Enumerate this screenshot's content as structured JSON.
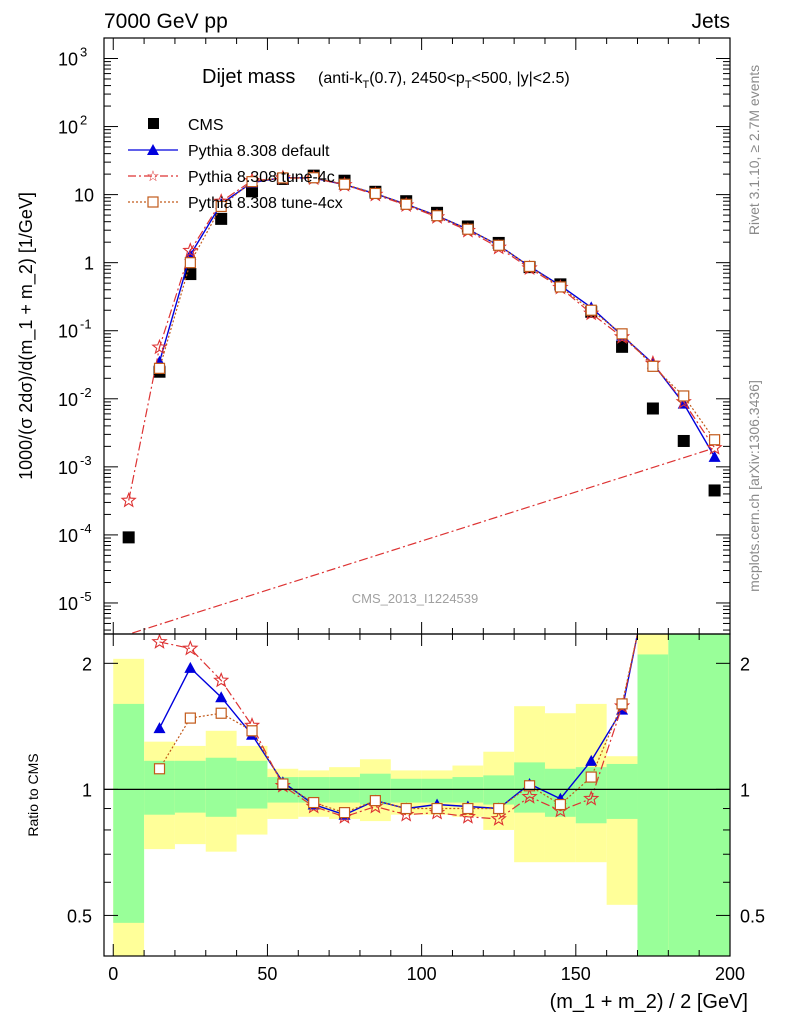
{
  "header": {
    "left": "7000 GeV pp",
    "right": "Jets"
  },
  "side_text": {
    "rivet": "Rivet 3.1.10, ≥ 2.7M events",
    "mcplots": "mcplots.cern.ch [arXiv:1306.3436]"
  },
  "colors": {
    "cms": "#000000",
    "default": "#0000dd",
    "tune4c": "#dd3333",
    "tune4cx": "#c25a1a",
    "band_inner": "#99ff99",
    "band_outer": "#ffff99"
  },
  "chart_data": [
    {
      "type": "scatter",
      "title": "Dijet mass",
      "title_detail": "(anti-k_T(0.7), 2450<p_T<500, |y|<2.5)",
      "watermark": "CMS_2013_I1224539",
      "xlabel": "(m_1 + m_2) / 2 [GeV]",
      "ylabel": "1000/(σ 2dσ)/d(m_1 + m_2) [1/GeV]",
      "yscale": "log",
      "xlim": [
        -3,
        200
      ],
      "ylim": [
        3.5e-06,
        2000
      ],
      "yticks": [
        {
          "v": 1e-05,
          "m": "10",
          "e": "-5"
        },
        {
          "v": 0.0001,
          "m": "10",
          "e": "-4"
        },
        {
          "v": 0.001,
          "m": "10",
          "e": "-3"
        },
        {
          "v": 0.01,
          "m": "10",
          "e": "-2"
        },
        {
          "v": 0.1,
          "m": "10",
          "e": "-1"
        },
        {
          "v": 1,
          "m": "1",
          "e": ""
        },
        {
          "v": 10,
          "m": "10",
          "e": ""
        },
        {
          "v": 100,
          "m": "10",
          "e": "2"
        },
        {
          "v": 1000,
          "m": "10",
          "e": "3"
        }
      ],
      "legend_position": "top-left",
      "series": [
        {
          "name": "CMS",
          "marker": "square",
          "x": [
            5,
            15,
            25,
            35,
            45,
            55,
            65,
            75,
            85,
            95,
            105,
            115,
            125,
            135,
            145,
            155,
            165,
            175,
            185,
            195
          ],
          "y": [
            9.2e-05,
            0.025,
            0.68,
            4.4,
            11.2,
            17.0,
            19.0,
            16.0,
            11.0,
            8.0,
            5.4,
            3.4,
            1.95,
            0.86,
            0.48,
            0.19,
            0.058,
            0.0072,
            0.0024,
            0.00045
          ]
        },
        {
          "name": "Pythia 8.308 default",
          "marker": "triangle",
          "line": "solid",
          "x": [
            15,
            25,
            35,
            45,
            55,
            65,
            75,
            85,
            95,
            105,
            115,
            125,
            135,
            145,
            155,
            165,
            175,
            185,
            195
          ],
          "y": [
            0.035,
            1.3,
            7.3,
            15.0,
            17.8,
            17.5,
            14.0,
            10.3,
            7.2,
            4.9,
            3.1,
            1.8,
            0.88,
            0.46,
            0.22,
            0.085,
            0.033,
            0.0085,
            0.0014
          ]
        },
        {
          "name": "Pythia 8.308 tune-4c",
          "marker": "star",
          "line": "dashdot",
          "x": [
            5,
            15,
            25,
            35,
            45,
            55,
            65,
            75,
            85,
            95,
            105,
            115,
            125,
            135,
            145,
            155,
            165,
            175,
            185,
            195
          ],
          "y": [
            0.00032,
            0.057,
            1.5,
            7.9,
            16.0,
            17.5,
            17.4,
            13.9,
            10.0,
            7.0,
            4.7,
            2.95,
            1.67,
            0.83,
            0.43,
            0.18,
            0.081,
            0.033,
            0.009,
            0.0019
          ]
        },
        {
          "name": "Pythia 8.308 tune-4cx",
          "marker": "open-square",
          "line": "dotted",
          "x": [
            15,
            25,
            35,
            45,
            55,
            65,
            75,
            85,
            95,
            105,
            115,
            125,
            135,
            145,
            155,
            165,
            175,
            185,
            195
          ],
          "y": [
            0.028,
            1.0,
            6.7,
            15.5,
            17.6,
            17.7,
            14.2,
            10.4,
            7.2,
            4.9,
            3.1,
            1.8,
            0.88,
            0.44,
            0.2,
            0.09,
            0.03,
            0.011,
            0.0025
          ]
        }
      ]
    },
    {
      "type": "line",
      "ylabel": "Ratio to CMS",
      "xlabel": "(m_1 + m_2) / 2 [GeV]",
      "yscale": "log",
      "xlim": [
        -3,
        200
      ],
      "ylim": [
        0.4,
        2.35
      ],
      "xticks": [
        0,
        50,
        100,
        150,
        200
      ],
      "yticks": [
        0.5,
        1,
        2
      ],
      "bands": [
        {
          "x0": 0,
          "x1": 10,
          "inner_lo": 0.48,
          "inner_hi": 1.6,
          "outer_lo": 0.4,
          "outer_hi": 2.05
        },
        {
          "x0": 10,
          "x1": 20,
          "inner_lo": 0.87,
          "inner_hi": 1.17,
          "outer_lo": 0.72,
          "outer_hi": 1.3
        },
        {
          "x0": 20,
          "x1": 30,
          "inner_lo": 0.88,
          "inner_hi": 1.17,
          "outer_lo": 0.74,
          "outer_hi": 1.27
        },
        {
          "x0": 30,
          "x1": 40,
          "inner_lo": 0.86,
          "inner_hi": 1.19,
          "outer_lo": 0.71,
          "outer_hi": 1.38
        },
        {
          "x0": 40,
          "x1": 50,
          "inner_lo": 0.9,
          "inner_hi": 1.17,
          "outer_lo": 0.78,
          "outer_hi": 1.27
        },
        {
          "x0": 50,
          "x1": 60,
          "inner_lo": 0.93,
          "inner_hi": 1.07,
          "outer_lo": 0.85,
          "outer_hi": 1.12
        },
        {
          "x0": 60,
          "x1": 70,
          "inner_lo": 0.93,
          "inner_hi": 1.07,
          "outer_lo": 0.86,
          "outer_hi": 1.11
        },
        {
          "x0": 70,
          "x1": 80,
          "inner_lo": 0.93,
          "inner_hi": 1.07,
          "outer_lo": 0.85,
          "outer_hi": 1.13
        },
        {
          "x0": 80,
          "x1": 90,
          "inner_lo": 0.92,
          "inner_hi": 1.09,
          "outer_lo": 0.84,
          "outer_hi": 1.18
        },
        {
          "x0": 90,
          "x1": 100,
          "inner_lo": 0.93,
          "inner_hi": 1.06,
          "outer_lo": 0.87,
          "outer_hi": 1.11
        },
        {
          "x0": 100,
          "x1": 110,
          "inner_lo": 0.93,
          "inner_hi": 1.06,
          "outer_lo": 0.87,
          "outer_hi": 1.11
        },
        {
          "x0": 110,
          "x1": 120,
          "inner_lo": 0.93,
          "inner_hi": 1.07,
          "outer_lo": 0.86,
          "outer_hi": 1.14
        },
        {
          "x0": 120,
          "x1": 130,
          "inner_lo": 0.92,
          "inner_hi": 1.08,
          "outer_lo": 0.8,
          "outer_hi": 1.23
        },
        {
          "x0": 130,
          "x1": 140,
          "inner_lo": 0.88,
          "inner_hi": 1.16,
          "outer_lo": 0.67,
          "outer_hi": 1.58
        },
        {
          "x0": 140,
          "x1": 150,
          "inner_lo": 0.86,
          "inner_hi": 1.12,
          "outer_lo": 0.67,
          "outer_hi": 1.52
        },
        {
          "x0": 150,
          "x1": 160,
          "inner_lo": 0.83,
          "inner_hi": 1.13,
          "outer_lo": 0.67,
          "outer_hi": 1.6
        },
        {
          "x0": 160,
          "x1": 170,
          "inner_lo": 0.85,
          "inner_hi": 1.15,
          "outer_lo": 0.53,
          "outer_hi": 1.2
        },
        {
          "x0": 170,
          "x1": 180,
          "inner_lo": 0.4,
          "inner_hi": 2.1,
          "outer_lo": 0.4,
          "outer_hi": 2.35
        },
        {
          "x0": 180,
          "x1": 200,
          "inner_lo": 0.4,
          "inner_hi": 2.35,
          "outer_lo": 0.4,
          "outer_hi": 2.35
        }
      ],
      "series": [
        {
          "name": "Pythia 8.308 default",
          "marker": "triangle",
          "line": "solid",
          "x": [
            15,
            25,
            35,
            45,
            55,
            65,
            75,
            85,
            95,
            105,
            115,
            125,
            135,
            145,
            155,
            165,
            170
          ],
          "y": [
            1.4,
            1.95,
            1.66,
            1.35,
            1.04,
            0.92,
            0.87,
            0.94,
            0.9,
            0.92,
            0.91,
            0.9,
            1.03,
            0.95,
            1.17,
            1.55,
            2.35
          ]
        },
        {
          "name": "Pythia 8.308 tune-4c",
          "marker": "star",
          "line": "dashdot",
          "x": [
            15,
            25,
            35,
            45,
            55,
            65,
            75,
            85,
            95,
            105,
            115,
            125,
            135,
            145,
            155,
            165,
            170
          ],
          "y": [
            2.25,
            2.17,
            1.82,
            1.42,
            1.02,
            0.91,
            0.86,
            0.91,
            0.87,
            0.88,
            0.86,
            0.85,
            0.96,
            0.89,
            0.95,
            1.58,
            2.35
          ]
        },
        {
          "name": "Pythia 8.308 tune-4cx",
          "marker": "open-square",
          "line": "dotted",
          "x": [
            15,
            25,
            35,
            45,
            55,
            65,
            75,
            85,
            95,
            105,
            115,
            125,
            135,
            145,
            155,
            165,
            170
          ],
          "y": [
            1.12,
            1.48,
            1.52,
            1.38,
            1.03,
            0.93,
            0.88,
            0.94,
            0.9,
            0.9,
            0.9,
            0.9,
            1.02,
            0.92,
            1.07,
            1.6,
            2.35
          ]
        }
      ]
    }
  ]
}
